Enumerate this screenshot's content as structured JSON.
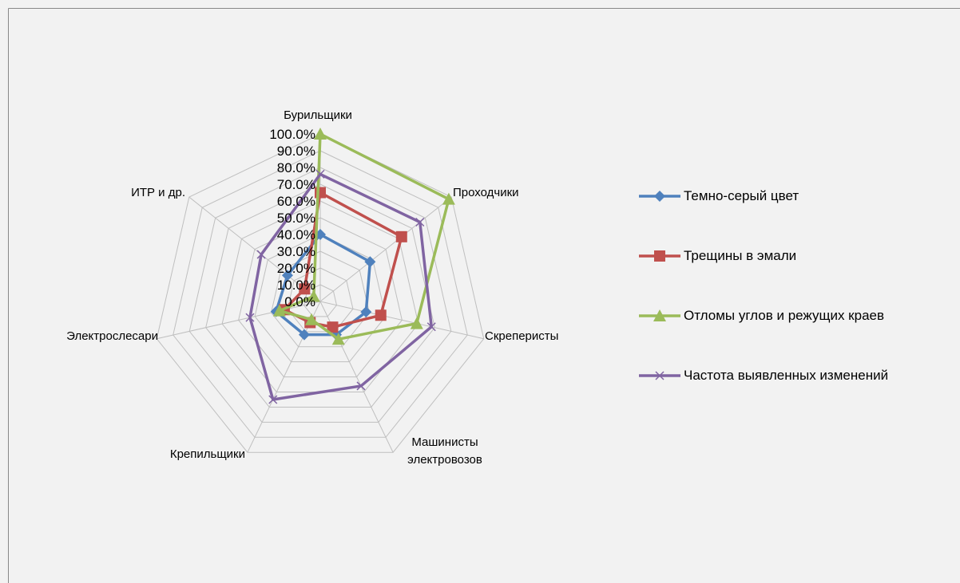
{
  "chart_data": {
    "type": "radar",
    "categories": [
      "Бурильщики",
      "Проходчики",
      "Скреперисты",
      "Машинисты электровозов",
      "Крепильщики",
      "Электрослесари",
      "ИТР и др."
    ],
    "ylim": [
      0,
      100
    ],
    "yticks": [
      {
        "value": 0,
        "label": "0.0%"
      },
      {
        "value": 10,
        "label": "10.0%"
      },
      {
        "value": 20,
        "label": "20.0%"
      },
      {
        "value": 30,
        "label": "30.0%"
      },
      {
        "value": 40,
        "label": "40.0%"
      },
      {
        "value": 50,
        "label": "50.0%"
      },
      {
        "value": 60,
        "label": "60.0%"
      },
      {
        "value": 70,
        "label": "70.0%"
      },
      {
        "value": 80,
        "label": "80.0%"
      },
      {
        "value": 90,
        "label": "90.0%"
      },
      {
        "value": 100,
        "label": "100.0%"
      }
    ],
    "grid": true,
    "legend": "right",
    "series": [
      {
        "name": "Темно-серый цвет",
        "color": "#4f81bd",
        "marker": "diamond",
        "values": [
          40,
          38,
          28,
          22,
          22,
          27,
          25
        ]
      },
      {
        "name": "Трещины в эмали",
        "color": "#c0504d",
        "marker": "square",
        "values": [
          65,
          62,
          37,
          17,
          14,
          22,
          12
        ]
      },
      {
        "name": "Отломы углов и режущих краев",
        "color": "#9bbb59",
        "marker": "triangle",
        "values": [
          100,
          98,
          59,
          25,
          12,
          25,
          5
        ]
      },
      {
        "name": "Частота выявленных изменений",
        "color": "#8064a2",
        "marker": "x",
        "values": [
          76,
          76,
          68,
          56,
          65,
          43,
          45
        ]
      }
    ]
  }
}
